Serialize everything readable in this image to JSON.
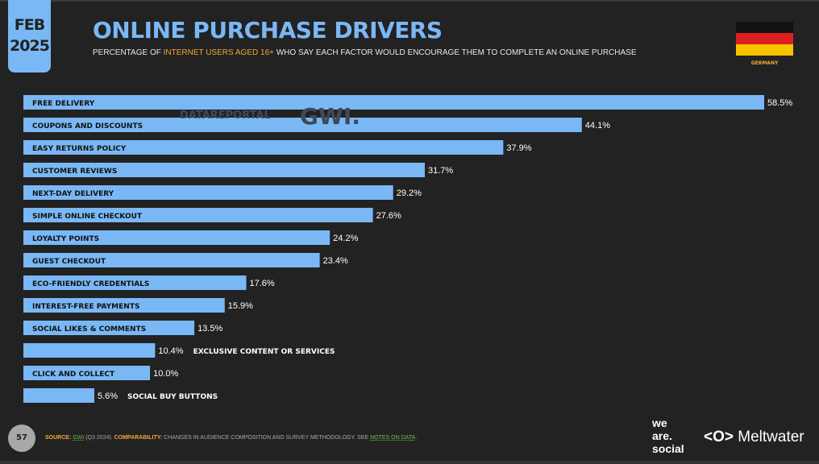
{
  "header": {
    "month": "FEB",
    "year": "2025",
    "title": "ONLINE PURCHASE DRIVERS",
    "subtitle_pre": "PERCENTAGE OF ",
    "subtitle_highlight": "INTERNET USERS AGED 16+",
    "subtitle_post": " WHO SAY EACH FACTOR WOULD ENCOURAGE THEM TO COMPLETE AN ONLINE PURCHASE",
    "country": "GERMANY"
  },
  "colors": {
    "bar": "#7ab8f5",
    "accent": "#f3a93b",
    "background": "#222222",
    "link": "#6fbf4a"
  },
  "watermark": {
    "left": "DATAREPORTAL",
    "right": "GWI."
  },
  "chart_data": {
    "type": "bar",
    "orientation": "horizontal",
    "categories": [
      "FREE DELIVERY",
      "COUPONS AND DISCOUNTS",
      "EASY RETURNS POLICY",
      "CUSTOMER REVIEWS",
      "NEXT-DAY DELIVERY",
      "SIMPLE ONLINE CHECKOUT",
      "LOYALTY POINTS",
      "GUEST CHECKOUT",
      "ECO-FRIENDLY CREDENTIALS",
      "INTEREST-FREE PAYMENTS",
      "SOCIAL LIKES & COMMENTS",
      "EXCLUSIVE CONTENT OR SERVICES",
      "CLICK AND COLLECT",
      "SOCIAL BUY BUTTONS"
    ],
    "values": [
      58.5,
      44.1,
      37.9,
      31.7,
      29.2,
      27.6,
      24.2,
      23.4,
      17.6,
      15.9,
      13.5,
      10.4,
      10.0,
      5.6
    ],
    "value_labels": [
      "58.5%",
      "44.1%",
      "37.9%",
      "31.7%",
      "29.2%",
      "27.6%",
      "24.2%",
      "23.4%",
      "17.6%",
      "15.9%",
      "13.5%",
      "10.4%",
      "10.0%",
      "5.6%"
    ],
    "xlim": [
      0,
      58.5
    ],
    "grid": false
  },
  "footer": {
    "page": "57",
    "source_label": "SOURCE:",
    "source": "GWI",
    "source_detail": " (Q3 2024). ",
    "comparability_label": "COMPARABILITY:",
    "comparability": " CHANGES IN AUDIENCE COMPOSITION AND SURVEY METHODOLOGY. SEE ",
    "notes_link": "NOTES ON DATA",
    "end": "."
  },
  "logos": {
    "was1": "we",
    "was2": "are.",
    "was3": "social",
    "meltwater": "Meltwater",
    "meltwater_mark": "<O>"
  }
}
